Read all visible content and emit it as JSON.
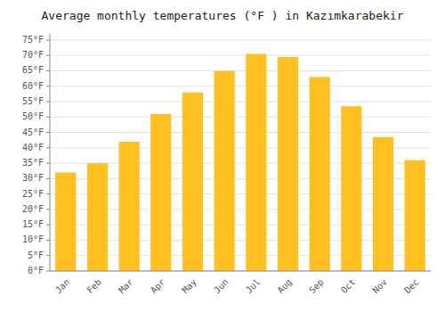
{
  "chart_data": {
    "type": "bar",
    "title": "Average monthly temperatures (°F ) in Kazımkarabekir",
    "categories": [
      "Jan",
      "Feb",
      "Mar",
      "Apr",
      "May",
      "Jun",
      "Jul",
      "Aug",
      "Sep",
      "Oct",
      "Nov",
      "Dec"
    ],
    "values": [
      32,
      35,
      42,
      51,
      58,
      65,
      70.5,
      69.5,
      63,
      53.5,
      43.5,
      36
    ],
    "color": "#FFC020",
    "ylim": [
      0,
      77
    ],
    "yticks": [
      {
        "value": 0,
        "label": "0°F"
      },
      {
        "value": 5,
        "label": "5°F"
      },
      {
        "value": 10,
        "label": "10°F"
      },
      {
        "value": 15,
        "label": "15°F"
      },
      {
        "value": 20,
        "label": "20°F"
      },
      {
        "value": 25,
        "label": "25°F"
      },
      {
        "value": 30,
        "label": "30°F"
      },
      {
        "value": 35,
        "label": "35°F"
      },
      {
        "value": 40,
        "label": "40°F"
      },
      {
        "value": 45,
        "label": "45°F"
      },
      {
        "value": 50,
        "label": "50°F"
      },
      {
        "value": 55,
        "label": "55°F"
      },
      {
        "value": 60,
        "label": "60°F"
      },
      {
        "value": 65,
        "label": "65°F"
      },
      {
        "value": 70,
        "label": "70°F"
      },
      {
        "value": 75,
        "label": "75°F"
      }
    ],
    "grid": true
  }
}
